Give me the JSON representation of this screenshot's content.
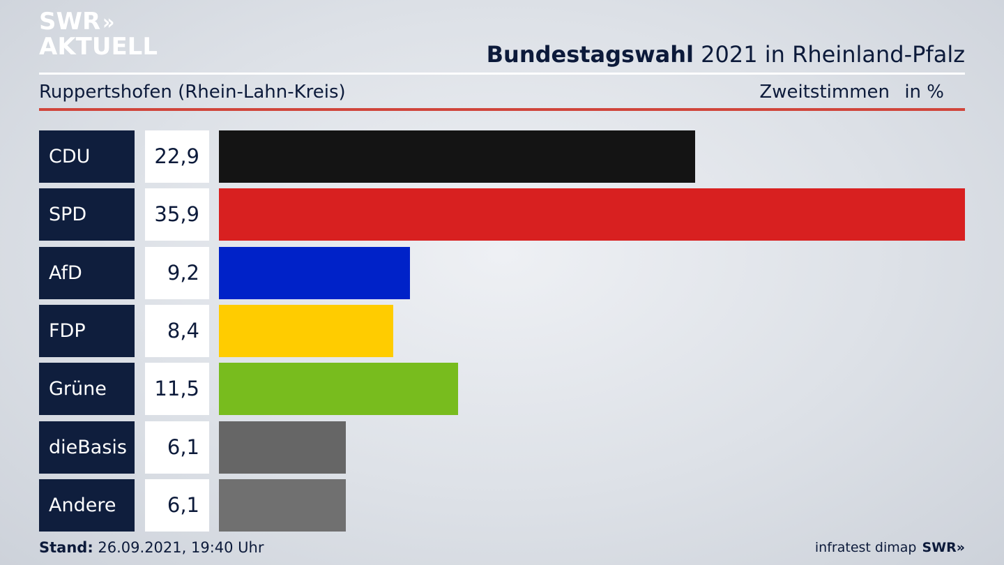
{
  "brand": {
    "line1": "SWR",
    "chevrons": "»",
    "line2": "AKTUELL"
  },
  "header": {
    "title_bold": "Bundestagswahl",
    "title_rest": " 2021 in Rheinland-Pfalz",
    "location": "Ruppertshofen (Rhein-Lahn-Kreis)",
    "vote_type": "Zweitstimmen",
    "unit": "in %"
  },
  "footer": {
    "stand_label": "Stand:",
    "stand_value": " 26.09.2021, 19:40 Uhr",
    "source": "infratest dimap",
    "brand": "SWR»"
  },
  "colors": {
    "accent_rule": "#d0453b",
    "label_bg": "#0f1e3d"
  },
  "chart_data": {
    "type": "bar",
    "orientation": "horizontal",
    "categories": [
      "CDU",
      "SPD",
      "AfD",
      "FDP",
      "Grüne",
      "dieBasis",
      "Andere"
    ],
    "values": [
      22.9,
      35.9,
      9.2,
      8.4,
      11.5,
      6.1,
      6.1
    ],
    "value_labels": [
      "22,9",
      "35,9",
      "9,2",
      "8,4",
      "11,5",
      "6,1",
      "6,1"
    ],
    "colors": [
      "#141414",
      "#d82020",
      "#0022c8",
      "#ffcc00",
      "#78bc1e",
      "#666666",
      "#707070"
    ],
    "title": "Bundestagswahl 2021 in Rheinland-Pfalz",
    "subtitle": "Ruppertshofen (Rhein-Lahn-Kreis)",
    "xlabel": "",
    "ylabel": "",
    "xlim": [
      0,
      35.9
    ],
    "grid": false,
    "legend": "none"
  }
}
